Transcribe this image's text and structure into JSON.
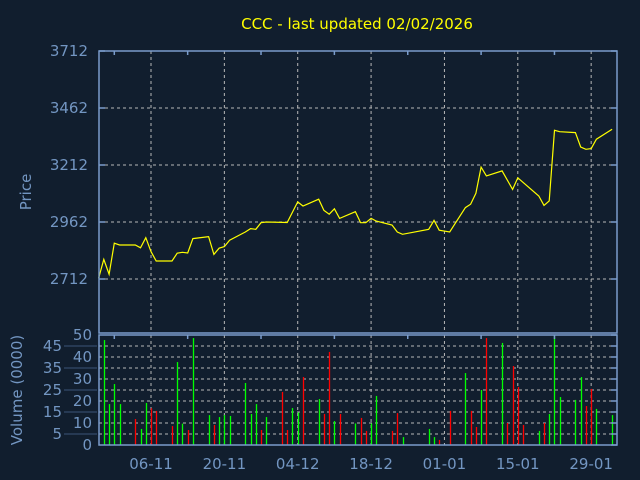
{
  "chart_data": [
    {
      "type": "line",
      "title": "CCC - last updated 02/02/2026",
      "ylabel": "Price",
      "xlabel": "",
      "ylim": [
        2475,
        3712
      ],
      "xlim": [
        "2025-10-27",
        "2026-02-03"
      ],
      "yticks": [
        2712,
        2962,
        3212,
        3462,
        3712
      ],
      "xticks": [
        {
          "date": "2025-11-06",
          "label": "06-11"
        },
        {
          "date": "2025-11-20",
          "label": "20-11"
        },
        {
          "date": "2025-12-04",
          "label": "04-12"
        },
        {
          "date": "2025-12-18",
          "label": "18-12"
        },
        {
          "date": "2026-01-01",
          "label": "01-01"
        },
        {
          "date": "2026-01-15",
          "label": "15-01"
        },
        {
          "date": "2026-01-29",
          "label": "29-01"
        }
      ],
      "grid": true,
      "line_color": "#ffff00",
      "series": [
        {
          "x": [
            "2025-10-27",
            "2025-10-28",
            "2025-10-29",
            "2025-10-30",
            "2025-10-31",
            "2025-11-03",
            "2025-11-04",
            "2025-11-05",
            "2025-11-06",
            "2025-11-07",
            "2025-11-10",
            "2025-11-11",
            "2025-11-12",
            "2025-11-13",
            "2025-11-14",
            "2025-11-17",
            "2025-11-18",
            "2025-11-19",
            "2025-11-20",
            "2025-11-21",
            "2025-11-24",
            "2025-11-25",
            "2025-11-26",
            "2025-11-27",
            "2025-11-28",
            "2025-12-02",
            "2025-12-04",
            "2025-12-05",
            "2025-12-08",
            "2025-12-09",
            "2025-12-10",
            "2025-12-11",
            "2025-12-12",
            "2025-12-15",
            "2025-12-16",
            "2025-12-17",
            "2025-12-18",
            "2025-12-19",
            "2025-12-22",
            "2025-12-23",
            "2025-12-24",
            "2025-12-29",
            "2025-12-30",
            "2025-12-31",
            "2026-01-02",
            "2026-01-05",
            "2026-01-06",
            "2026-01-07",
            "2026-01-08",
            "2026-01-09",
            "2026-01-12",
            "2026-01-14",
            "2026-01-15",
            "2026-01-19",
            "2026-01-20",
            "2026-01-21",
            "2026-01-22",
            "2026-01-23",
            "2026-01-26",
            "2026-01-27",
            "2026-01-28",
            "2026-01-29",
            "2026-01-30",
            "2026-02-02"
          ],
          "y": [
            2715,
            2798,
            2733,
            2869,
            2861,
            2861,
            2849,
            2893,
            2832,
            2791,
            2791,
            2825,
            2829,
            2826,
            2889,
            2898,
            2820,
            2847,
            2854,
            2882,
            2918,
            2933,
            2930,
            2959,
            2962,
            2960,
            3050,
            3032,
            3062,
            3013,
            2996,
            3020,
            2978,
            3007,
            2959,
            2959,
            2978,
            2966,
            2949,
            2918,
            2908,
            2930,
            2969,
            2926,
            2918,
            3025,
            3040,
            3088,
            3203,
            3164,
            3186,
            3105,
            3156,
            3076,
            3035,
            3054,
            3364,
            3358,
            3354,
            3291,
            3281,
            3284,
            3325,
            3369
          ]
        }
      ]
    },
    {
      "type": "bar",
      "ylabel": "Volume (0000)",
      "ylim": [
        0,
        50
      ],
      "yticks": [
        0,
        5,
        10,
        15,
        20,
        25,
        30,
        35,
        40,
        45,
        50
      ],
      "grid": true,
      "colors": {
        "up": "#00ff00",
        "down": "#ff0000"
      },
      "x": [
        "2025-10-28",
        "2025-10-29",
        "2025-10-30",
        "2025-10-31",
        "2025-11-03",
        "2025-11-04",
        "2025-11-05",
        "2025-11-06",
        "2025-11-07",
        "2025-11-10",
        "2025-11-11",
        "2025-11-12",
        "2025-11-13",
        "2025-11-14",
        "2025-11-17",
        "2025-11-18",
        "2025-11-19",
        "2025-11-20",
        "2025-11-21",
        "2025-11-24",
        "2025-11-25",
        "2025-11-26",
        "2025-11-27",
        "2025-11-28",
        "2025-12-01",
        "2025-12-02",
        "2025-12-03",
        "2025-12-04",
        "2025-12-05",
        "2025-12-08",
        "2025-12-09",
        "2025-12-10",
        "2025-12-11",
        "2025-12-12",
        "2025-12-15",
        "2025-12-16",
        "2025-12-17",
        "2025-12-18",
        "2025-12-19",
        "2025-12-22",
        "2025-12-23",
        "2025-12-24",
        "2025-12-29",
        "2025-12-30",
        "2025-12-31",
        "2026-01-02",
        "2026-01-05",
        "2026-01-06",
        "2026-01-07",
        "2026-01-08",
        "2026-01-09",
        "2026-01-12",
        "2026-01-13",
        "2026-01-14",
        "2026-01-15",
        "2026-01-16",
        "2026-01-19",
        "2026-01-20",
        "2026-01-21",
        "2026-01-22",
        "2026-01-23",
        "2026-01-26",
        "2026-01-27",
        "2026-01-28",
        "2026-01-29",
        "2026-01-30",
        "2026-02-02"
      ],
      "values": [
        47.7,
        18.6,
        27.7,
        18.6,
        11.8,
        7.3,
        19.1,
        16.7,
        15.5,
        8.6,
        37.7,
        9.7,
        6.8,
        48.6,
        13.6,
        9.1,
        12.7,
        13.6,
        13.2,
        28.2,
        14.1,
        18.6,
        6.8,
        12.7,
        24.1,
        6.8,
        16.8,
        14.8,
        30.9,
        20.9,
        14.1,
        42.3,
        10.9,
        14.1,
        9.8,
        12.3,
        6.4,
        9.8,
        22.3,
        6.4,
        14.5,
        3.6,
        7.3,
        3.6,
        2.3,
        15.5,
        32.7,
        15.5,
        8.2,
        25,
        48.6,
        46.4,
        10,
        35.9,
        26.4,
        9.1,
        6.4,
        10,
        14.1,
        49.5,
        21.8,
        20.5,
        30.9,
        17.7,
        25.5,
        16.4,
        13.6
      ],
      "direction": [
        "up",
        "up",
        "up",
        "up",
        "down",
        "up",
        "up",
        "down",
        "down",
        "down",
        "up",
        "up",
        "down",
        "up",
        "up",
        "down",
        "up",
        "up",
        "up",
        "up",
        "up",
        "up",
        "down",
        "up",
        "down",
        "down",
        "up",
        "up",
        "down",
        "up",
        "down",
        "down",
        "up",
        "down",
        "up",
        "down",
        "down",
        "up",
        "up",
        "down",
        "down",
        "up",
        "up",
        "up",
        "down",
        "down",
        "up",
        "down",
        "down",
        "up",
        "down",
        "up",
        "down",
        "down",
        "down",
        "down",
        "up",
        "down",
        "up",
        "up",
        "up",
        "up",
        "up",
        "down",
        "down",
        "up",
        "up"
      ]
    }
  ]
}
